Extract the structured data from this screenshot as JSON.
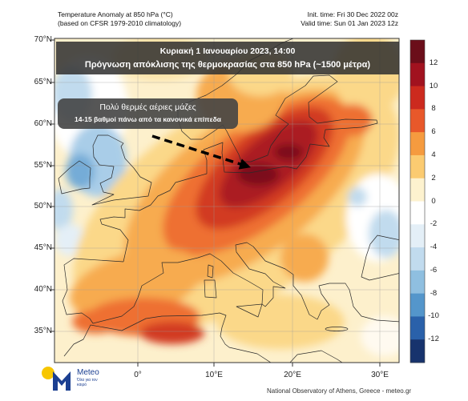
{
  "header": {
    "title_line1": "Temperature Anomaly at 850 hPa (°C)",
    "title_line2": "(based on CFSR 1979-2010 climatology)",
    "init_time": "Init. time: Fri 30 Dec 2022 00z",
    "valid_time": "Valid time: Sun 01 Jan 2023 12z"
  },
  "banner": {
    "line1": "Κυριακή 1 Ιανουαρίου 2023, 14:00",
    "line2": "Πρόγνωση απόκλισης της θερμοκρασίας στα 850 hPa (~1500 μέτρα)"
  },
  "callout": {
    "line1": "Πολύ θερμές αέριες μάζες",
    "line2": "14-15 βαθμοί πάνω από τα κανονικά επίπεδα"
  },
  "map": {
    "lat_labels": [
      "70°N",
      "65°N",
      "60°N",
      "55°N",
      "50°N",
      "45°N",
      "40°N",
      "35°N"
    ],
    "lon_labels": [
      "0°",
      "10°E",
      "20°E",
      "30°E"
    ]
  },
  "colorbar": {
    "labels": [
      "12",
      "10",
      "8",
      "6",
      "4",
      "2",
      "0",
      "-2",
      "-4",
      "-6",
      "-8",
      "-10",
      "-12"
    ],
    "colors": [
      "#6b0e1a",
      "#a1121f",
      "#cc2a1e",
      "#e8582a",
      "#f59b3f",
      "#fbcb71",
      "#fdf2cf",
      "#ffffff",
      "#e4eff7",
      "#c1dbee",
      "#8fbfe0",
      "#5496cb",
      "#2a61aa",
      "#17336d"
    ]
  },
  "logo": {
    "name": "Meteo",
    "tagline": "Όλα για τον καιρό",
    "sun_color": "#f7c600",
    "brand_color": "#1b3f91"
  },
  "footer": {
    "credit": "National Observatory of Athens, Greece - meteo.gr"
  }
}
